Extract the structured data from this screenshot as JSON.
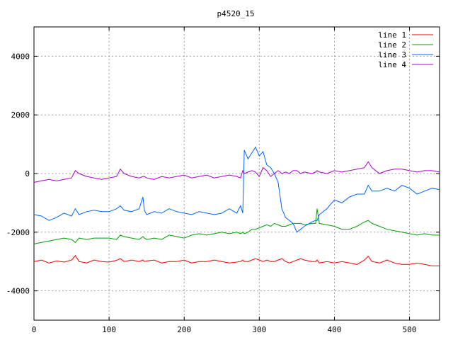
{
  "chart_data": {
    "type": "line",
    "title": "p4520_15",
    "xlabel": "",
    "ylabel": "",
    "xlim": [
      0,
      540
    ],
    "ylim": [
      -5000,
      5000
    ],
    "x_ticks": [
      0,
      100,
      200,
      300,
      400,
      500
    ],
    "y_ticks": [
      -4000,
      -2000,
      0,
      2000,
      4000
    ],
    "grid": true,
    "legend_position": "top-right",
    "x": [
      0,
      10,
      20,
      30,
      40,
      50,
      55,
      60,
      70,
      80,
      90,
      100,
      110,
      115,
      120,
      130,
      140,
      145,
      147,
      150,
      160,
      170,
      180,
      190,
      200,
      210,
      220,
      230,
      240,
      250,
      260,
      270,
      275,
      278,
      280,
      285,
      290,
      295,
      300,
      305,
      310,
      315,
      320,
      325,
      330,
      335,
      340,
      345,
      350,
      355,
      360,
      370,
      375,
      377,
      380,
      390,
      400,
      410,
      420,
      430,
      440,
      445,
      450,
      460,
      470,
      480,
      490,
      500,
      510,
      520,
      530,
      540
    ],
    "series": [
      {
        "name": "line 1",
        "color": "#ff0000",
        "values": [
          -3000,
          -2950,
          -3050,
          -2980,
          -3020,
          -2950,
          -2800,
          -3000,
          -3050,
          -2950,
          -3000,
          -3020,
          -2960,
          -2900,
          -3000,
          -2950,
          -3000,
          -2950,
          -3000,
          -2980,
          -2950,
          -3050,
          -3000,
          -3000,
          -2950,
          -3050,
          -3000,
          -3000,
          -2950,
          -3000,
          -3050,
          -3020,
          -3000,
          -2950,
          -3000,
          -3000,
          -2950,
          -2900,
          -2950,
          -3000,
          -2950,
          -3000,
          -3000,
          -2950,
          -2900,
          -3000,
          -3050,
          -3000,
          -2950,
          -2900,
          -2950,
          -3000,
          -3000,
          -2950,
          -3050,
          -3000,
          -3050,
          -3000,
          -3050,
          -3100,
          -2950,
          -2820,
          -3000,
          -3050,
          -2950,
          -3050,
          -3100,
          -3100,
          -3050,
          -3100,
          -3150,
          -3150
        ]
      },
      {
        "name": "line 2",
        "color": "#00a000",
        "values": [
          -2400,
          -2350,
          -2300,
          -2250,
          -2200,
          -2250,
          -2350,
          -2200,
          -2250,
          -2200,
          -2200,
          -2200,
          -2250,
          -2100,
          -2150,
          -2200,
          -2250,
          -2150,
          -2200,
          -2250,
          -2200,
          -2250,
          -2100,
          -2150,
          -2200,
          -2100,
          -2050,
          -2100,
          -2050,
          -2000,
          -2050,
          -2000,
          -2050,
          -2000,
          -2050,
          -2000,
          -1900,
          -1900,
          -1850,
          -1800,
          -1750,
          -1800,
          -1700,
          -1750,
          -1800,
          -1800,
          -1750,
          -1700,
          -1700,
          -1700,
          -1750,
          -1700,
          -1700,
          -1200,
          -1700,
          -1750,
          -1800,
          -1900,
          -1900,
          -1800,
          -1650,
          -1600,
          -1700,
          -1800,
          -1900,
          -1950,
          -2000,
          -2050,
          -2100,
          -2050,
          -2100,
          -2100
        ]
      },
      {
        "name": "line 3",
        "color": "#0066ff",
        "values": [
          -1400,
          -1450,
          -1600,
          -1500,
          -1350,
          -1450,
          -1200,
          -1400,
          -1300,
          -1250,
          -1300,
          -1300,
          -1200,
          -1100,
          -1250,
          -1300,
          -1200,
          -800,
          -1250,
          -1400,
          -1300,
          -1350,
          -1200,
          -1300,
          -1350,
          -1400,
          -1300,
          -1350,
          -1400,
          -1350,
          -1200,
          -1350,
          -1100,
          -1350,
          800,
          500,
          700,
          900,
          600,
          750,
          300,
          200,
          0,
          -300,
          -1200,
          -1500,
          -1600,
          -1700,
          -2000,
          -1900,
          -1800,
          -1650,
          -1600,
          -1600,
          -1400,
          -1200,
          -900,
          -1000,
          -800,
          -700,
          -700,
          -400,
          -600,
          -600,
          -500,
          -600,
          -400,
          -500,
          -700,
          -600,
          -500,
          -550
        ]
      },
      {
        "name": "line 4",
        "color": "#aa00cc",
        "values": [
          -300,
          -250,
          -200,
          -250,
          -200,
          -150,
          100,
          0,
          -100,
          -150,
          -200,
          -150,
          -100,
          150,
          0,
          -100,
          -150,
          -100,
          -100,
          -150,
          -200,
          -100,
          -150,
          -100,
          -50,
          -150,
          -100,
          -50,
          -150,
          -100,
          -50,
          -100,
          -150,
          100,
          0,
          50,
          100,
          50,
          -100,
          200,
          100,
          -100,
          0,
          100,
          0,
          50,
          0,
          100,
          100,
          0,
          50,
          0,
          50,
          100,
          50,
          0,
          100,
          50,
          100,
          150,
          200,
          400,
          200,
          0,
          100,
          150,
          150,
          100,
          50,
          100,
          100,
          50
        ]
      }
    ]
  }
}
